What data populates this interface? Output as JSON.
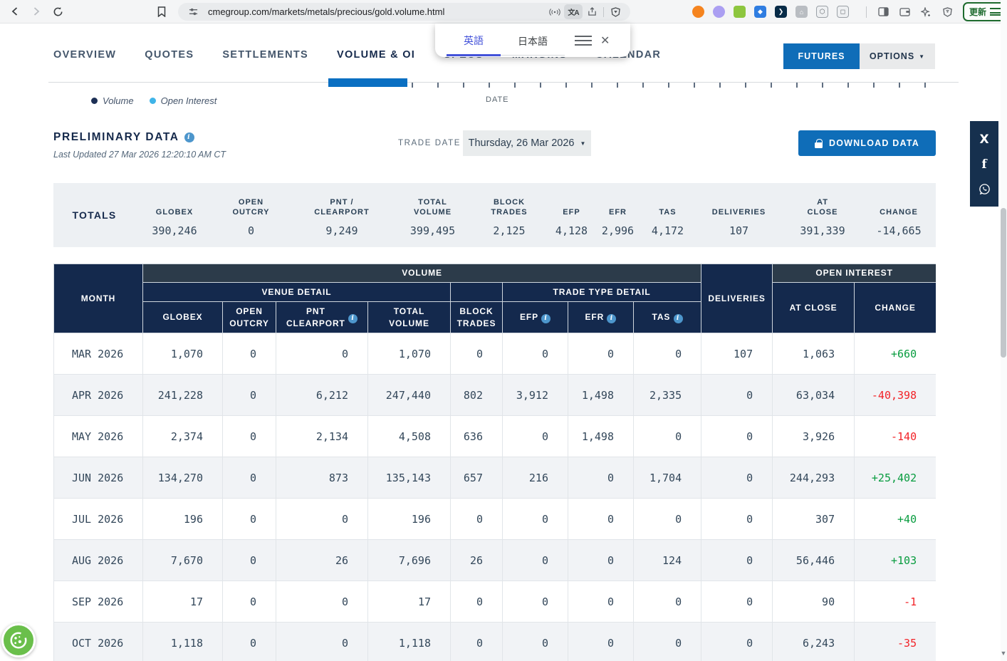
{
  "browser": {
    "url": "cmegroup.com/markets/metals/precious/gold.volume.html",
    "update_button_label": "更新",
    "extensions": [
      {
        "name": "metamask-icon",
        "color": "#f5841f",
        "glyph": ""
      },
      {
        "name": "phantom-icon",
        "color": "#ab9ff2",
        "glyph": ""
      },
      {
        "name": "signal-bars-icon",
        "color": "#8dc63f",
        "glyph": ""
      },
      {
        "name": "compass-icon",
        "color": "#2f7de1",
        "glyph": "◆"
      },
      {
        "name": "arc-icon",
        "color": "#072b47",
        "glyph": "❯"
      },
      {
        "name": "home-icon",
        "color": "#b9bdc2",
        "glyph": "⌂"
      },
      {
        "name": "puzzle-icon",
        "color": "#eef0f2",
        "glyph": "⬡"
      },
      {
        "name": "preview-box-icon",
        "color": "#eef0f2",
        "glyph": "◻"
      }
    ]
  },
  "translate_popup": {
    "tab_english": "英語",
    "tab_japanese": "日本語"
  },
  "nav": {
    "tabs": [
      {
        "label": "OVERVIEW",
        "active": false
      },
      {
        "label": "QUOTES",
        "active": false
      },
      {
        "label": "SETTLEMENTS",
        "active": false
      },
      {
        "label": "VOLUME & OI",
        "active": true
      },
      {
        "label": "SPECS",
        "active": false
      },
      {
        "label": "MARGINS",
        "active": false
      },
      {
        "label": "CALENDAR",
        "active": false
      }
    ],
    "futures_label": "FUTURES",
    "options_label": "OPTIONS"
  },
  "chart": {
    "legend": [
      {
        "label": "Volume",
        "color": "#1d2f55"
      },
      {
        "label": "Open Interest",
        "color": "#3fb4e8"
      }
    ],
    "axis_label": "DATE"
  },
  "preliminary": {
    "title": "PRELIMINARY DATA",
    "last_updated": "Last Updated 27 Mar 2026 12:20:10 AM CT"
  },
  "trade_date": {
    "label": "TRADE DATE",
    "value": "Thursday, 26 Mar 2026"
  },
  "download_label": "DOWNLOAD DATA",
  "totals": {
    "label": "TOTALS",
    "columns": [
      {
        "header": "GLOBEX",
        "value": "390,246"
      },
      {
        "header": "OPEN\nOUTCRY",
        "value": "0"
      },
      {
        "header": "PNT /\nCLEARPORT",
        "value": "9,249"
      },
      {
        "header": "TOTAL\nVOLUME",
        "value": "399,495"
      },
      {
        "header": "BLOCK\nTRADES",
        "value": "2,125"
      },
      {
        "header": "EFP",
        "value": "4,128"
      },
      {
        "header": "EFR",
        "value": "2,996"
      },
      {
        "header": "TAS",
        "value": "4,172"
      },
      {
        "header": "DELIVERIES",
        "value": "107"
      },
      {
        "header": "AT\nCLOSE",
        "value": "391,339"
      },
      {
        "header": "CHANGE",
        "value": "-14,665"
      }
    ]
  },
  "table": {
    "headers": {
      "month": "MONTH",
      "volume_group": "VOLUME",
      "venue_detail": "VENUE DETAIL",
      "trade_type_detail": "TRADE TYPE DETAIL",
      "deliveries": "DELIVERIES",
      "open_interest_group": "OPEN INTEREST",
      "globex": "GLOBEX",
      "open_outcry": "OPEN\nOUTCRY",
      "pnt_clearport": "PNT\nCLEARPORT",
      "total_volume": "TOTAL\nVOLUME",
      "block_trades": "BLOCK\nTRADES",
      "efp": "EFP",
      "efr": "EFR",
      "tas": "TAS",
      "at_close": "AT CLOSE",
      "change": "CHANGE"
    },
    "rows": [
      {
        "month": "MAR 2026",
        "globex": "1,070",
        "open_outcry": "0",
        "pnt_clearport": "0",
        "total_volume": "1,070",
        "block_trades": "0",
        "efp": "0",
        "efr": "0",
        "tas": "0",
        "deliveries": "107",
        "at_close": "1,063",
        "change": "+660",
        "change_dir": "up"
      },
      {
        "month": "APR 2026",
        "globex": "241,228",
        "open_outcry": "0",
        "pnt_clearport": "6,212",
        "total_volume": "247,440",
        "block_trades": "802",
        "efp": "3,912",
        "efr": "1,498",
        "tas": "2,335",
        "deliveries": "0",
        "at_close": "63,034",
        "change": "-40,398",
        "change_dir": "down"
      },
      {
        "month": "MAY 2026",
        "globex": "2,374",
        "open_outcry": "0",
        "pnt_clearport": "2,134",
        "total_volume": "4,508",
        "block_trades": "636",
        "efp": "0",
        "efr": "1,498",
        "tas": "0",
        "deliveries": "0",
        "at_close": "3,926",
        "change": "-140",
        "change_dir": "down"
      },
      {
        "month": "JUN 2026",
        "globex": "134,270",
        "open_outcry": "0",
        "pnt_clearport": "873",
        "total_volume": "135,143",
        "block_trades": "657",
        "efp": "216",
        "efr": "0",
        "tas": "1,704",
        "deliveries": "0",
        "at_close": "244,293",
        "change": "+25,402",
        "change_dir": "up"
      },
      {
        "month": "JUL 2026",
        "globex": "196",
        "open_outcry": "0",
        "pnt_clearport": "0",
        "total_volume": "196",
        "block_trades": "0",
        "efp": "0",
        "efr": "0",
        "tas": "0",
        "deliveries": "0",
        "at_close": "307",
        "change": "+40",
        "change_dir": "up"
      },
      {
        "month": "AUG 2026",
        "globex": "7,670",
        "open_outcry": "0",
        "pnt_clearport": "26",
        "total_volume": "7,696",
        "block_trades": "26",
        "efp": "0",
        "efr": "0",
        "tas": "124",
        "deliveries": "0",
        "at_close": "56,446",
        "change": "+103",
        "change_dir": "up"
      },
      {
        "month": "SEP 2026",
        "globex": "17",
        "open_outcry": "0",
        "pnt_clearport": "0",
        "total_volume": "17",
        "block_trades": "0",
        "efp": "0",
        "efr": "0",
        "tas": "0",
        "deliveries": "0",
        "at_close": "90",
        "change": "-1",
        "change_dir": "down"
      },
      {
        "month": "OCT 2026",
        "globex": "1,118",
        "open_outcry": "0",
        "pnt_clearport": "0",
        "total_volume": "1,118",
        "block_trades": "0",
        "efp": "0",
        "efr": "0",
        "tas": "0",
        "deliveries": "0",
        "at_close": "6,243",
        "change": "-35",
        "change_dir": "down"
      }
    ]
  },
  "colors": {
    "accent_blue": "#0f6db8",
    "header_navy": "#14294d",
    "header_slate": "#2c3b4a",
    "positive_green": "#089c3f",
    "negative_red": "#f22328"
  }
}
